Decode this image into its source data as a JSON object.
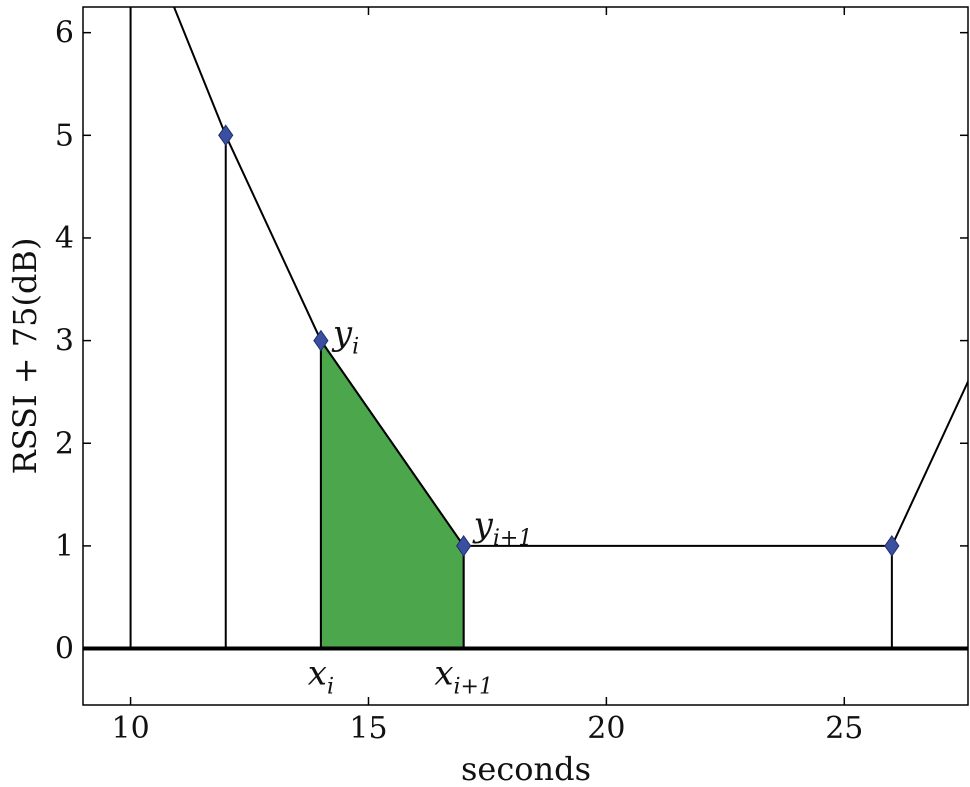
{
  "chart_data": {
    "type": "line",
    "title": "",
    "xlabel": "seconds",
    "ylabel": "RSSI + 75(dB)",
    "xlim": [
      9,
      27.6
    ],
    "ylim": [
      -0.55,
      6.25
    ],
    "xticks": [
      10,
      15,
      20,
      25
    ],
    "yticks": [
      0,
      1,
      2,
      3,
      4,
      5,
      6
    ],
    "grid": false,
    "legend": "none",
    "series": [
      {
        "points": [
          {
            "x": 10,
            "y": 7.3
          },
          {
            "x": 12,
            "y": 5
          },
          {
            "x": 14,
            "y": 3
          },
          {
            "x": 17,
            "y": 1
          },
          {
            "x": 26,
            "y": 1
          },
          {
            "x": 28,
            "y": 3
          }
        ],
        "markers": [
          {
            "x": 12,
            "y": 5
          },
          {
            "x": 14,
            "y": 3
          },
          {
            "x": 17,
            "y": 1
          },
          {
            "x": 26,
            "y": 1
          }
        ],
        "vertical_lines_x": [
          10,
          12,
          14,
          17,
          26
        ]
      }
    ],
    "shaded_region": {
      "x0": 14,
      "x1": 17,
      "y0": 3,
      "y1": 1
    },
    "annotations": [
      {
        "name": "y-i",
        "x": 14,
        "y": 3,
        "main": "y",
        "sub": "i"
      },
      {
        "name": "y-i-plus-1",
        "x": 17,
        "y": 1,
        "main": "y",
        "sub": "i+1"
      },
      {
        "name": "x-i",
        "x": 14,
        "y": 0,
        "main": "x",
        "sub": "i"
      },
      {
        "name": "x-i-plus-1",
        "x": 17,
        "y": 0,
        "main": "x",
        "sub": "i+1"
      }
    ],
    "colors": {
      "line": "#000000",
      "marker": "#3a4fa0",
      "fill": "#4ca64c",
      "fill_edge": "#2d7a2d"
    }
  }
}
